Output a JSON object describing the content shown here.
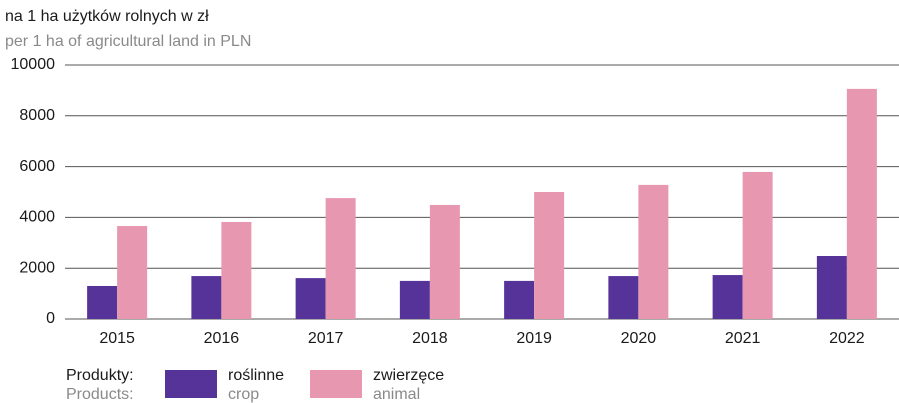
{
  "chart_data": {
    "type": "bar",
    "subtitle": "na 1 ha użytków rolnych w zł",
    "subtitle_en": "per 1 ha of agricultural land in PLN",
    "categories": [
      "2015",
      "2016",
      "2017",
      "2018",
      "2019",
      "2020",
      "2021",
      "2022"
    ],
    "series": [
      {
        "name": "roślinne",
        "name_en": "crop",
        "color": "#553399",
        "values": [
          1300,
          1690,
          1610,
          1500,
          1500,
          1690,
          1730,
          2480
        ]
      },
      {
        "name": "zwierzęce",
        "name_en": "animal",
        "color": "#e897b0",
        "values": [
          3660,
          3820,
          4760,
          4490,
          5000,
          5280,
          5790,
          9060
        ]
      }
    ],
    "legend_title": "Produkty:",
    "legend_title_en": "Products:",
    "ylim": [
      0,
      10000
    ],
    "yticks": [
      0,
      2000,
      4000,
      6000,
      8000,
      10000
    ],
    "grid": true
  }
}
